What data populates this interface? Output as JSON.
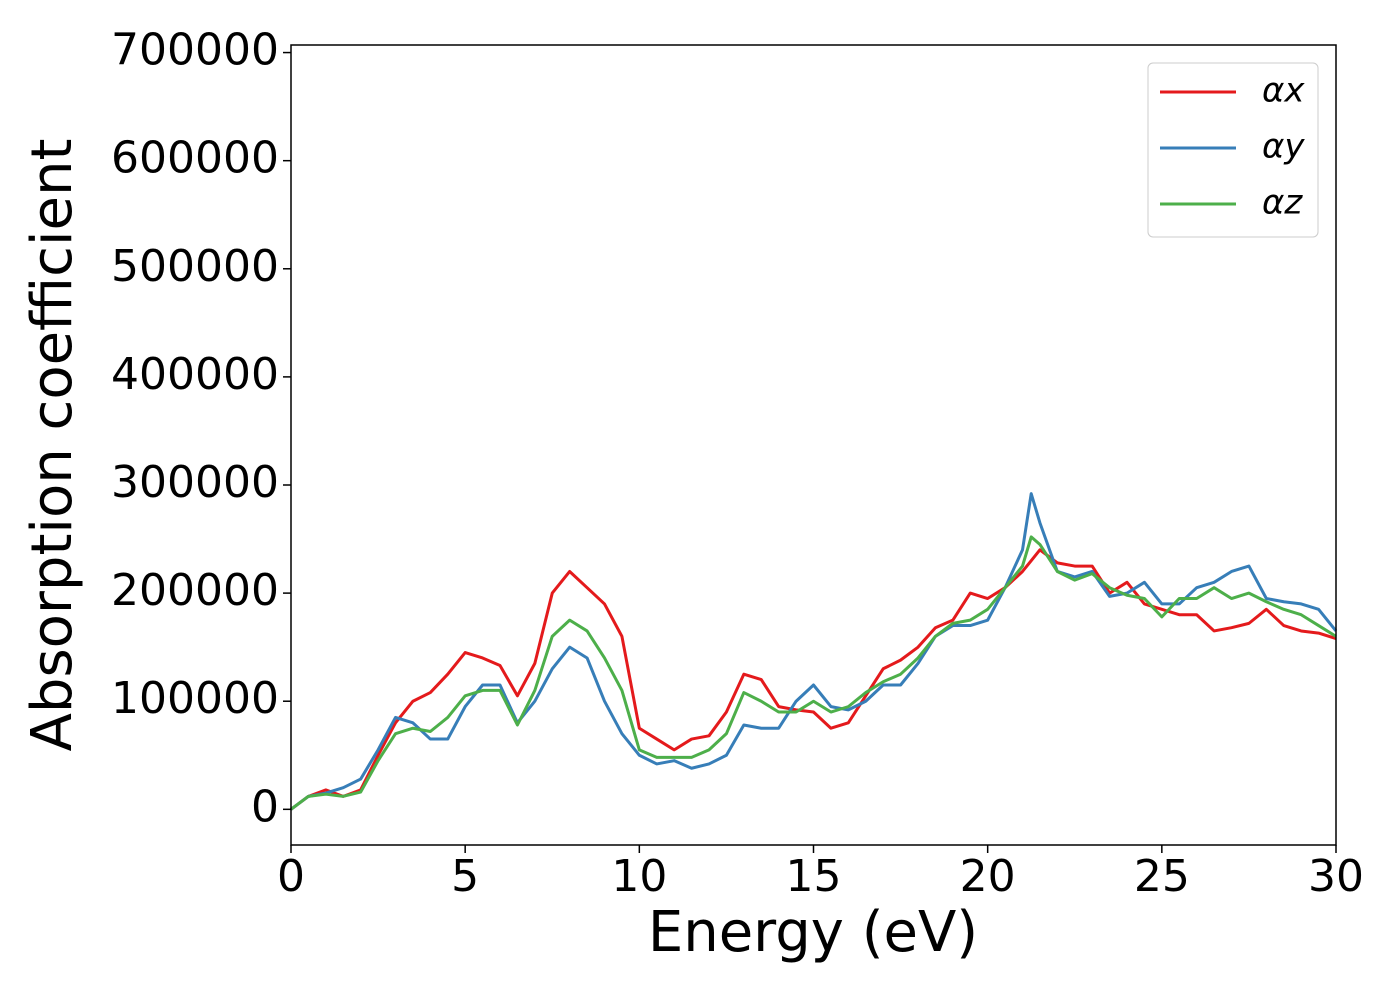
{
  "chart_data": {
    "type": "line",
    "xlabel": "Energy (eV)",
    "ylabel": "Absorption coefficient",
    "x": [
      0,
      0.5,
      1,
      1.5,
      2,
      2.5,
      3,
      3.5,
      4,
      4.5,
      5,
      5.5,
      6,
      6.5,
      7,
      7.5,
      8,
      8.5,
      9,
      9.5,
      10,
      10.5,
      11,
      11.5,
      12,
      12.5,
      13,
      13.5,
      14,
      14.5,
      15,
      15.5,
      16,
      16.5,
      17,
      17.5,
      18,
      18.5,
      19,
      19.5,
      20,
      20.5,
      21,
      21.25,
      21.5,
      22,
      22.5,
      23,
      23.5,
      24,
      24.5,
      25,
      25.5,
      26,
      26.5,
      27,
      27.5,
      28,
      28.5,
      29,
      29.5,
      30
    ],
    "series": [
      {
        "name": "αx",
        "color": "#e41a1c",
        "values": [
          0,
          12000,
          18000,
          12000,
          18000,
          50000,
          80000,
          100000,
          108000,
          125000,
          145000,
          140000,
          133000,
          105000,
          135000,
          200000,
          220000,
          205000,
          190000,
          160000,
          75000,
          65000,
          55000,
          65000,
          68000,
          90000,
          125000,
          120000,
          95000,
          92000,
          90000,
          75000,
          80000,
          105000,
          130000,
          138000,
          150000,
          168000,
          175000,
          200000,
          195000,
          205000,
          220000,
          230000,
          240000,
          228000,
          225000,
          225000,
          200000,
          210000,
          190000,
          185000,
          180000,
          180000,
          165000,
          168000,
          172000,
          185000,
          170000,
          165000,
          163000,
          158000
        ]
      },
      {
        "name": "αy",
        "color": "#377eb8",
        "values": [
          0,
          12000,
          15000,
          20000,
          28000,
          55000,
          85000,
          80000,
          65000,
          65000,
          95000,
          115000,
          115000,
          80000,
          100000,
          130000,
          150000,
          140000,
          100000,
          70000,
          50000,
          42000,
          45000,
          38000,
          42000,
          50000,
          78000,
          75000,
          75000,
          100000,
          115000,
          95000,
          92000,
          100000,
          115000,
          115000,
          135000,
          160000,
          170000,
          170000,
          175000,
          205000,
          240000,
          292000,
          265000,
          220000,
          215000,
          220000,
          197000,
          200000,
          210000,
          190000,
          190000,
          205000,
          210000,
          220000,
          225000,
          195000,
          192000,
          190000,
          185000,
          165000
        ]
      },
      {
        "name": "αz",
        "color": "#4daf4a",
        "values": [
          0,
          12000,
          14000,
          12000,
          16000,
          45000,
          70000,
          75000,
          72000,
          85000,
          105000,
          110000,
          110000,
          78000,
          110000,
          160000,
          175000,
          165000,
          140000,
          110000,
          55000,
          48000,
          48000,
          48000,
          55000,
          70000,
          108000,
          100000,
          90000,
          90000,
          100000,
          90000,
          95000,
          108000,
          118000,
          125000,
          140000,
          160000,
          172000,
          175000,
          185000,
          205000,
          225000,
          252000,
          245000,
          220000,
          212000,
          218000,
          205000,
          198000,
          195000,
          178000,
          195000,
          195000,
          205000,
          195000,
          200000,
          192000,
          185000,
          180000,
          170000,
          160000
        ]
      }
    ],
    "xlim": [
      0,
      30
    ],
    "xticks": [
      0,
      5,
      10,
      15,
      20,
      25,
      30
    ],
    "ylim": [
      -33000,
      707000
    ],
    "yticks": [
      0,
      100000,
      200000,
      300000,
      400000,
      500000,
      600000,
      700000
    ],
    "grid": false,
    "legend": "upper right"
  }
}
